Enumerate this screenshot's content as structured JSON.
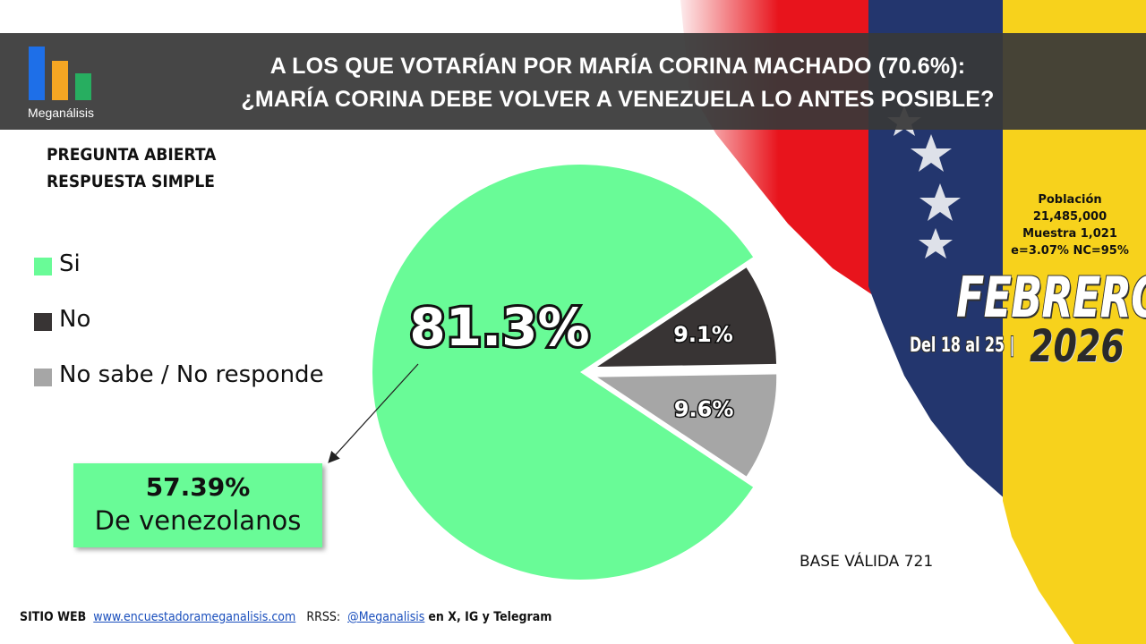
{
  "header": {
    "logo_text": "Meganálisis",
    "title_line1": "A LOS QUE VOTARÍAN POR MARÍA CORINA MACHADO (70.6%):",
    "title_line2": "¿MARÍA CORINA DEBE VOLVER A VENEZUELA LO ANTES POSIBLE?"
  },
  "subtitle": {
    "line1": "PREGUNTA  ABIERTA",
    "line2": "RESPUESTA SIMPLE"
  },
  "chart_data": {
    "type": "pie",
    "title": "¿MARÍA CORINA DEBE VOLVER A VENEZUELA LO ANTES POSIBLE?",
    "categories": [
      "Si",
      "No",
      "No sabe / No responde"
    ],
    "values": [
      81.3,
      9.1,
      9.6
    ],
    "data_labels": [
      "81.3%",
      "9.1%",
      "9.6%"
    ],
    "colors": [
      "#69fb97",
      "#383434",
      "#a6a6a6"
    ],
    "exploded": [
      false,
      true,
      true
    ],
    "legend_position": "left"
  },
  "callout": {
    "value": "57.39%",
    "text": "De venezolanos"
  },
  "stats": {
    "poblacion_label": "Población",
    "poblacion_value": "21,485,000",
    "muestra": "Muestra 1,021",
    "error": "e=3.07%  NC=95%"
  },
  "period": {
    "month": "FEBRERO",
    "dates": "Del 18 al 25 |",
    "year": "2026"
  },
  "base": "BASE VÁLIDA 721",
  "footer": {
    "web_label": "SITIO WEB",
    "web_url": "www.encuestadorameganalisis.com",
    "rrss_label": "RRSS:",
    "handle": "@Meganalisis",
    "networks": "en X, IG y Telegram"
  },
  "colors": {
    "logo_blue": "#1e6fe8",
    "logo_orange": "#f5a623",
    "logo_green": "#27ae60",
    "header_bg": "#383838",
    "flag_red": "#e8141c",
    "flag_blue": "#23366e",
    "flag_yellow": "#f7d21c"
  }
}
